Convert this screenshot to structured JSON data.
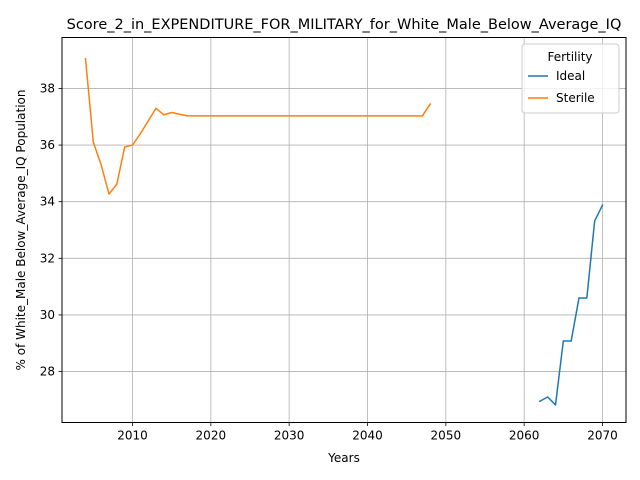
{
  "chart_data": {
    "type": "line",
    "title": "Score_2_in_EXPENDITURE_FOR_MILITARY_for_White_Male_Below_Average_IQ",
    "xlabel": "Years",
    "ylabel": "% of White_Male Below_Average_IQ Population",
    "xlim": [
      2001,
      2073
    ],
    "ylim": [
      26.2,
      39.8
    ],
    "xticks": [
      2010,
      2020,
      2030,
      2040,
      2050,
      2060,
      2070
    ],
    "yticks": [
      28,
      30,
      32,
      34,
      36,
      38
    ],
    "grid": true,
    "legend": {
      "title": "Fertility",
      "placement": "top-right"
    },
    "series": [
      {
        "name": "Ideal",
        "color": "#1f77b4",
        "x": [
          2062,
          2063,
          2064,
          2065,
          2066,
          2067,
          2068,
          2069,
          2070
        ],
        "y": [
          26.95,
          27.1,
          26.82,
          29.08,
          29.08,
          30.6,
          30.6,
          33.32,
          33.88
        ]
      },
      {
        "name": "Sterile",
        "color": "#ff7f0e",
        "x": [
          2004,
          2005,
          2006,
          2007,
          2008,
          2009,
          2010,
          2011,
          2012,
          2013,
          2014,
          2015,
          2016,
          2017,
          2020,
          2025,
          2030,
          2035,
          2040,
          2045,
          2047,
          2048
        ],
        "y": [
          39.05,
          36.1,
          35.3,
          34.27,
          34.62,
          35.93,
          36.0,
          36.4,
          36.85,
          37.3,
          37.07,
          37.15,
          37.09,
          37.03,
          37.03,
          37.03,
          37.03,
          37.03,
          37.03,
          37.03,
          37.03,
          37.45
        ]
      }
    ]
  }
}
